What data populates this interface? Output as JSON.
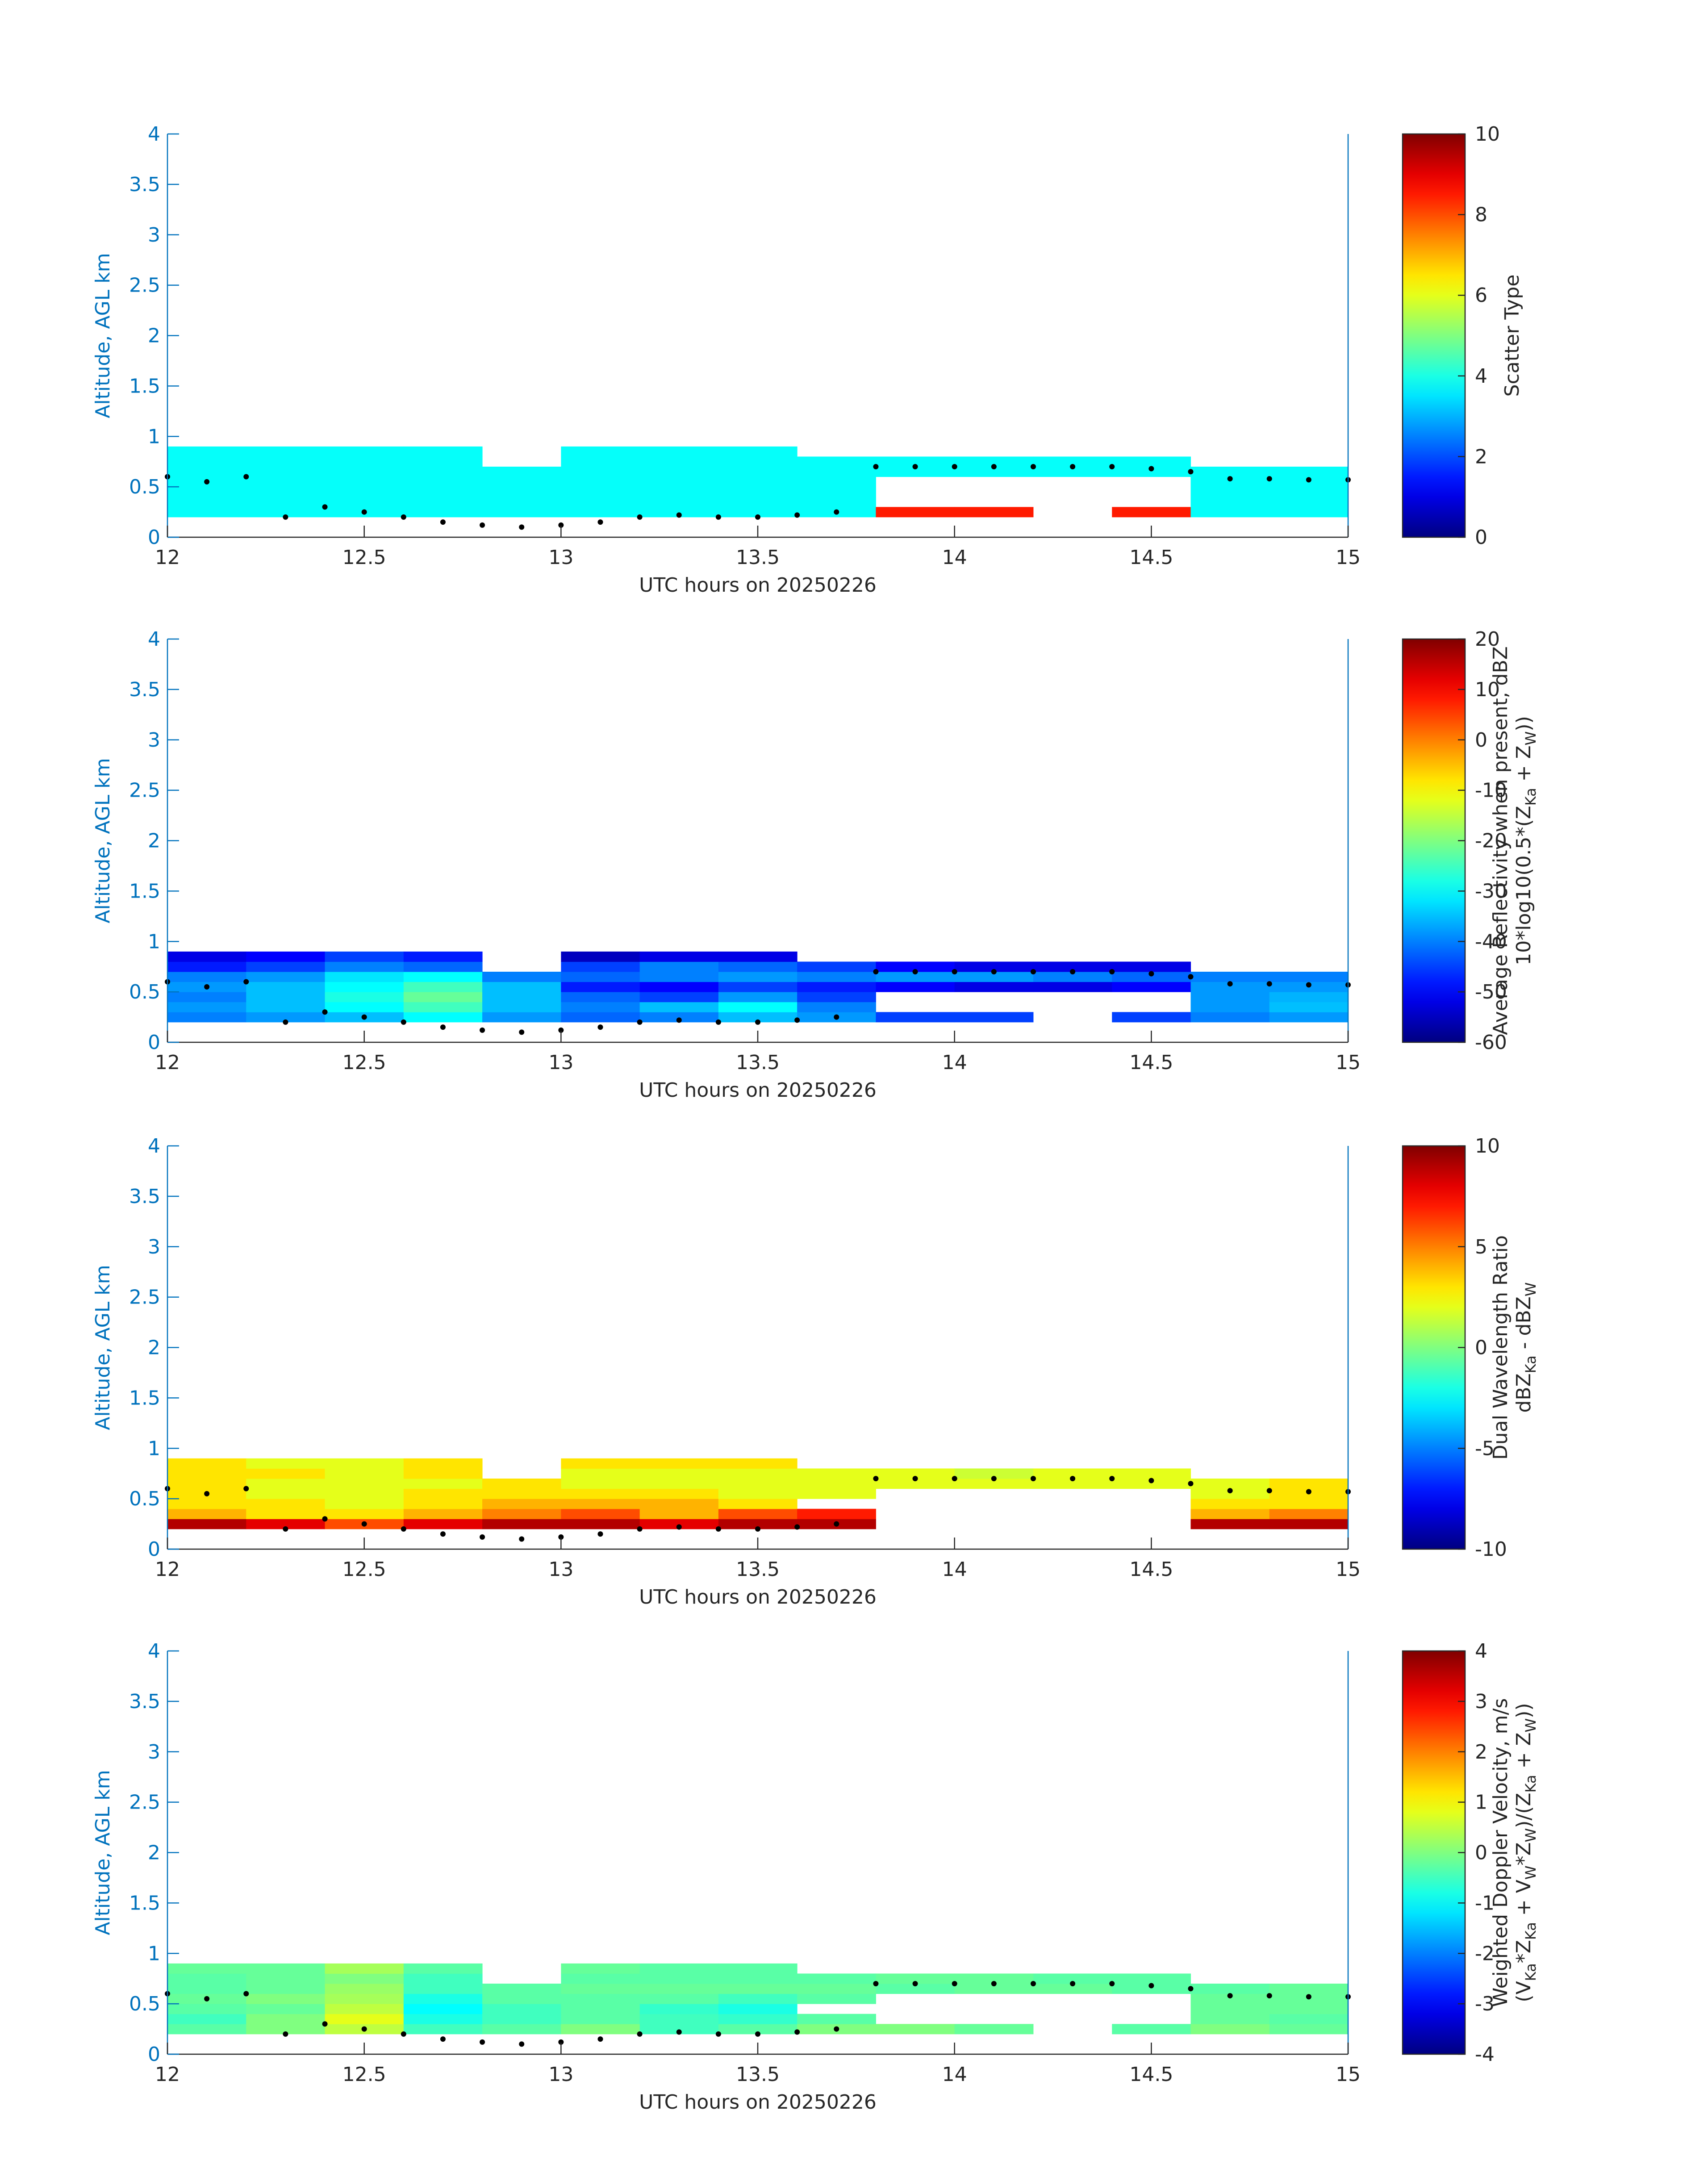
{
  "chart_data": [
    {
      "type": "heatmap",
      "colormap": "jet",
      "xlabel": "UTC hours on 20250226",
      "ylabel": "Altitude, AGL km",
      "xlim": [
        12,
        15
      ],
      "xticks": [
        12,
        12.5,
        13,
        13.5,
        14,
        14.5,
        15
      ],
      "ylim": [
        0,
        4
      ],
      "yticks": [
        0,
        0.5,
        1,
        1.5,
        2,
        2.5,
        3,
        3.5,
        4
      ],
      "x_edges": [
        12,
        12.2,
        12.4,
        12.6,
        12.8,
        13,
        13.2,
        13.4,
        13.6,
        13.8,
        14,
        14.2,
        14.4,
        14.6,
        14.8,
        15
      ],
      "y_edges": [
        0.2,
        0.3,
        0.4,
        0.5,
        0.6,
        0.7,
        0.8,
        0.9
      ],
      "z": [
        [
          3.8,
          3.8,
          3.8,
          3.8,
          3.8,
          3.8,
          3.8,
          3.8,
          3.8,
          8.5,
          8.5,
          null,
          8.5,
          3.8,
          3.8
        ],
        [
          3.8,
          3.8,
          3.8,
          3.8,
          3.8,
          3.8,
          3.8,
          3.8,
          3.8,
          null,
          null,
          null,
          null,
          3.8,
          3.8
        ],
        [
          3.8,
          3.8,
          3.8,
          3.8,
          3.8,
          3.8,
          3.8,
          3.8,
          3.8,
          null,
          null,
          null,
          null,
          3.8,
          3.8
        ],
        [
          3.8,
          3.8,
          3.8,
          3.8,
          3.8,
          3.8,
          3.8,
          3.8,
          3.8,
          null,
          null,
          null,
          null,
          3.8,
          3.8
        ],
        [
          3.8,
          3.8,
          3.8,
          3.8,
          3.8,
          3.8,
          3.8,
          3.8,
          3.8,
          3.8,
          3.8,
          3.8,
          3.8,
          3.8,
          3.8
        ],
        [
          3.8,
          3.8,
          3.8,
          3.8,
          null,
          3.8,
          3.8,
          3.8,
          3.8,
          3.8,
          3.8,
          3.8,
          3.8,
          null,
          null
        ],
        [
          3.8,
          3.8,
          3.8,
          3.8,
          null,
          3.8,
          3.8,
          3.8,
          null,
          null,
          null,
          null,
          null,
          null,
          null
        ]
      ],
      "dots_x": [
        12,
        12.1,
        12.2,
        12.3,
        12.4,
        12.5,
        12.6,
        12.7,
        12.8,
        12.9,
        13,
        13.1,
        13.2,
        13.3,
        13.4,
        13.5,
        13.6,
        13.7,
        13.8,
        13.9,
        14,
        14.1,
        14.2,
        14.3,
        14.4,
        14.5,
        14.6,
        14.7,
        14.8,
        14.9,
        15
      ],
      "dots_y": [
        0.6,
        0.55,
        0.6,
        0.2,
        0.3,
        0.25,
        0.2,
        0.15,
        0.12,
        0.1,
        0.12,
        0.15,
        0.2,
        0.22,
        0.2,
        0.2,
        0.22,
        0.25,
        0.7,
        0.7,
        0.7,
        0.7,
        0.7,
        0.7,
        0.7,
        0.68,
        0.65,
        0.58,
        0.58,
        0.57,
        0.57
      ],
      "clim": [
        0,
        10
      ],
      "cticks": [
        0,
        2,
        4,
        6,
        8,
        10
      ],
      "clabel": [
        [
          "Scatter Type"
        ]
      ]
    },
    {
      "type": "heatmap",
      "colormap": "jet",
      "xlabel": "UTC hours on 20250226",
      "ylabel": "Altitude, AGL km",
      "xlim": [
        12,
        15
      ],
      "xticks": [
        12,
        12.5,
        13,
        13.5,
        14,
        14.5,
        15
      ],
      "ylim": [
        0,
        4
      ],
      "yticks": [
        0,
        0.5,
        1,
        1.5,
        2,
        2.5,
        3,
        3.5,
        4
      ],
      "x_edges": [
        12,
        12.2,
        12.4,
        12.6,
        12.8,
        13,
        13.2,
        13.4,
        13.6,
        13.8,
        14,
        14.2,
        14.4,
        14.6,
        14.8,
        15
      ],
      "y_edges": [
        0.2,
        0.3,
        0.4,
        0.5,
        0.6,
        0.7,
        0.8,
        0.9
      ],
      "z": [
        [
          -40,
          -38,
          -35,
          -30,
          -38,
          -42,
          -40,
          -35,
          -38,
          -45,
          -45,
          null,
          -45,
          -40,
          -38
        ],
        [
          -38,
          -35,
          -30,
          -25,
          -35,
          -40,
          -35,
          -30,
          -40,
          null,
          null,
          null,
          null,
          -38,
          -35
        ],
        [
          -40,
          -35,
          -28,
          -22,
          -35,
          -42,
          -45,
          -38,
          -45,
          null,
          null,
          null,
          null,
          -38,
          -36
        ],
        [
          -38,
          -35,
          -30,
          -25,
          -35,
          -48,
          -50,
          -45,
          -48,
          -50,
          -52,
          -52,
          -50,
          -38,
          -38
        ],
        [
          -40,
          -38,
          -32,
          -30,
          -40,
          -42,
          -40,
          -38,
          -40,
          -38,
          -38,
          -40,
          -42,
          -40,
          -40
        ],
        [
          -48,
          -45,
          -40,
          -42,
          null,
          -45,
          -40,
          -42,
          -45,
          -50,
          -52,
          -52,
          -52,
          null,
          null
        ],
        [
          -52,
          -50,
          -45,
          -48,
          null,
          -55,
          -52,
          -52,
          null,
          null,
          null,
          null,
          null,
          null,
          null
        ]
      ],
      "dots_x": [
        12,
        12.1,
        12.2,
        12.3,
        12.4,
        12.5,
        12.6,
        12.7,
        12.8,
        12.9,
        13,
        13.1,
        13.2,
        13.3,
        13.4,
        13.5,
        13.6,
        13.7,
        13.8,
        13.9,
        14,
        14.1,
        14.2,
        14.3,
        14.4,
        14.5,
        14.6,
        14.7,
        14.8,
        14.9,
        15
      ],
      "dots_y": [
        0.6,
        0.55,
        0.6,
        0.2,
        0.3,
        0.25,
        0.2,
        0.15,
        0.12,
        0.1,
        0.12,
        0.15,
        0.2,
        0.22,
        0.2,
        0.2,
        0.22,
        0.25,
        0.7,
        0.7,
        0.7,
        0.7,
        0.7,
        0.7,
        0.7,
        0.68,
        0.65,
        0.58,
        0.58,
        0.57,
        0.57
      ],
      "clim": [
        -60,
        20
      ],
      "cticks": [
        -60,
        -50,
        -40,
        -30,
        -20,
        -10,
        0,
        10,
        20
      ],
      "clabel": [
        [
          "Average Reflectivity when present, dBZ"
        ],
        [
          "10*log10(0.5*(Z",
          {
            "sub": "Ka"
          },
          " + Z",
          {
            "sub": "W"
          },
          "))"
        ]
      ]
    },
    {
      "type": "heatmap",
      "colormap": "jet",
      "xlabel": "UTC hours on 20250226",
      "ylabel": "Altitude, AGL km",
      "xlim": [
        12,
        15
      ],
      "xticks": [
        12,
        12.5,
        13,
        13.5,
        14,
        14.5,
        15
      ],
      "ylim": [
        0,
        4
      ],
      "yticks": [
        0,
        0.5,
        1,
        1.5,
        2,
        2.5,
        3,
        3.5,
        4
      ],
      "x_edges": [
        12,
        12.2,
        12.4,
        12.6,
        12.8,
        13,
        13.2,
        13.4,
        13.6,
        13.8,
        14,
        14.2,
        14.4,
        14.6,
        14.8,
        15
      ],
      "y_edges": [
        0.2,
        0.3,
        0.4,
        0.5,
        0.6,
        0.7,
        0.8,
        0.9
      ],
      "z": [
        [
          9,
          8,
          6,
          8,
          9,
          9,
          8,
          9,
          9,
          null,
          null,
          null,
          null,
          9,
          9
        ],
        [
          4,
          3,
          3,
          4,
          5,
          6,
          4,
          6,
          7,
          null,
          null,
          null,
          null,
          4,
          5
        ],
        [
          3,
          3,
          2,
          3,
          4,
          4,
          4,
          3,
          null,
          null,
          null,
          null,
          null,
          3,
          3
        ],
        [
          3,
          2,
          2,
          3,
          3,
          3,
          3,
          2,
          2,
          null,
          null,
          null,
          null,
          2,
          3
        ],
        [
          3,
          2,
          2,
          2,
          3,
          2,
          2,
          2,
          2,
          2,
          2,
          2,
          2,
          2,
          3
        ],
        [
          3,
          3,
          2,
          3,
          null,
          2,
          2,
          2,
          2,
          2,
          1.5,
          2,
          2,
          null,
          null
        ],
        [
          3,
          2,
          2,
          3,
          null,
          3,
          3,
          3,
          null,
          null,
          null,
          null,
          null,
          null,
          null
        ]
      ],
      "dots_x": [
        12,
        12.1,
        12.2,
        12.3,
        12.4,
        12.5,
        12.6,
        12.7,
        12.8,
        12.9,
        13,
        13.1,
        13.2,
        13.3,
        13.4,
        13.5,
        13.6,
        13.7,
        13.8,
        13.9,
        14,
        14.1,
        14.2,
        14.3,
        14.4,
        14.5,
        14.6,
        14.7,
        14.8,
        14.9,
        15
      ],
      "dots_y": [
        0.6,
        0.55,
        0.6,
        0.2,
        0.3,
        0.25,
        0.2,
        0.15,
        0.12,
        0.1,
        0.12,
        0.15,
        0.2,
        0.22,
        0.2,
        0.2,
        0.22,
        0.25,
        0.7,
        0.7,
        0.7,
        0.7,
        0.7,
        0.7,
        0.7,
        0.68,
        0.65,
        0.58,
        0.58,
        0.57,
        0.57
      ],
      "clim": [
        -10,
        10
      ],
      "cticks": [
        -10,
        -5,
        0,
        5,
        10
      ],
      "clabel": [
        [
          "Dual Wavelength Ratio"
        ],
        [
          "dBZ",
          {
            "sub": "Ka"
          },
          " - dBZ",
          {
            "sub": "W"
          }
        ]
      ]
    },
    {
      "type": "heatmap",
      "colormap": "jet",
      "xlabel": "UTC hours on 20250226",
      "ylabel": "Altitude, AGL km",
      "xlim": [
        12,
        15
      ],
      "xticks": [
        12,
        12.5,
        13,
        13.5,
        14,
        14.5,
        15
      ],
      "ylim": [
        0,
        4
      ],
      "yticks": [
        0,
        0.5,
        1,
        1.5,
        2,
        2.5,
        3,
        3.5,
        4
      ],
      "x_edges": [
        12,
        12.2,
        12.4,
        12.6,
        12.8,
        13,
        13.2,
        13.4,
        13.6,
        13.8,
        14,
        14.2,
        14.4,
        14.6,
        14.8,
        15
      ],
      "y_edges": [
        0.2,
        0.3,
        0.4,
        0.5,
        0.6,
        0.7,
        0.8,
        0.9
      ],
      "z": [
        [
          -0.3,
          0,
          0.5,
          -0.5,
          -0.3,
          0,
          -0.5,
          -0.3,
          0,
          0,
          -0.2,
          null,
          -0.3,
          0,
          -0.2
        ],
        [
          -0.5,
          0,
          0.8,
          -0.8,
          -0.5,
          -0.3,
          -0.5,
          -0.6,
          -0.3,
          null,
          null,
          null,
          null,
          -0.2,
          -0.3
        ],
        [
          -0.3,
          -0.2,
          0.5,
          -1,
          -0.5,
          -0.3,
          -0.6,
          -0.8,
          null,
          null,
          null,
          null,
          null,
          -0.2,
          -0.2
        ],
        [
          -0.2,
          0,
          0.3,
          -0.8,
          -0.3,
          -0.3,
          -0.3,
          -0.5,
          -0.3,
          null,
          null,
          null,
          null,
          -0.2,
          -0.2
        ],
        [
          -0.3,
          -0.2,
          0.2,
          -0.5,
          -0.3,
          -0.2,
          -0.2,
          -0.2,
          -0.2,
          -0.3,
          -0.2,
          -0.2,
          -0.3,
          -0.3,
          -0.2
        ],
        [
          -0.3,
          -0.2,
          0,
          -0.5,
          null,
          -0.3,
          -0.3,
          -0.3,
          -0.3,
          -0.2,
          -0.2,
          -0.3,
          -0.3,
          null,
          null
        ],
        [
          -0.2,
          -0.2,
          0.3,
          -0.3,
          null,
          -0.2,
          -0.3,
          -0.3,
          null,
          null,
          null,
          null,
          null,
          null,
          null
        ]
      ],
      "dots_x": [
        12,
        12.1,
        12.2,
        12.3,
        12.4,
        12.5,
        12.6,
        12.7,
        12.8,
        12.9,
        13,
        13.1,
        13.2,
        13.3,
        13.4,
        13.5,
        13.6,
        13.7,
        13.8,
        13.9,
        14,
        14.1,
        14.2,
        14.3,
        14.4,
        14.5,
        14.6,
        14.7,
        14.8,
        14.9,
        15
      ],
      "dots_y": [
        0.6,
        0.55,
        0.6,
        0.2,
        0.3,
        0.25,
        0.2,
        0.15,
        0.12,
        0.1,
        0.12,
        0.15,
        0.2,
        0.22,
        0.2,
        0.2,
        0.22,
        0.25,
        0.7,
        0.7,
        0.7,
        0.7,
        0.7,
        0.7,
        0.7,
        0.68,
        0.65,
        0.58,
        0.58,
        0.57,
        0.57
      ],
      "clim": [
        -4,
        4
      ],
      "cticks": [
        -4,
        -3,
        -2,
        -1,
        0,
        1,
        2,
        3,
        4
      ],
      "clabel": [
        [
          "Weighted Doppler Velocity, m/s"
        ],
        [
          "(V",
          {
            "sub": "Ka"
          },
          "*Z",
          {
            "sub": "Ka"
          },
          " + V",
          {
            "sub": "W"
          },
          "*Z",
          {
            "sub": "W"
          },
          ")/(Z",
          {
            "sub": "Ka"
          },
          " + Z",
          {
            "sub": "W"
          },
          "))"
        ]
      ]
    }
  ]
}
